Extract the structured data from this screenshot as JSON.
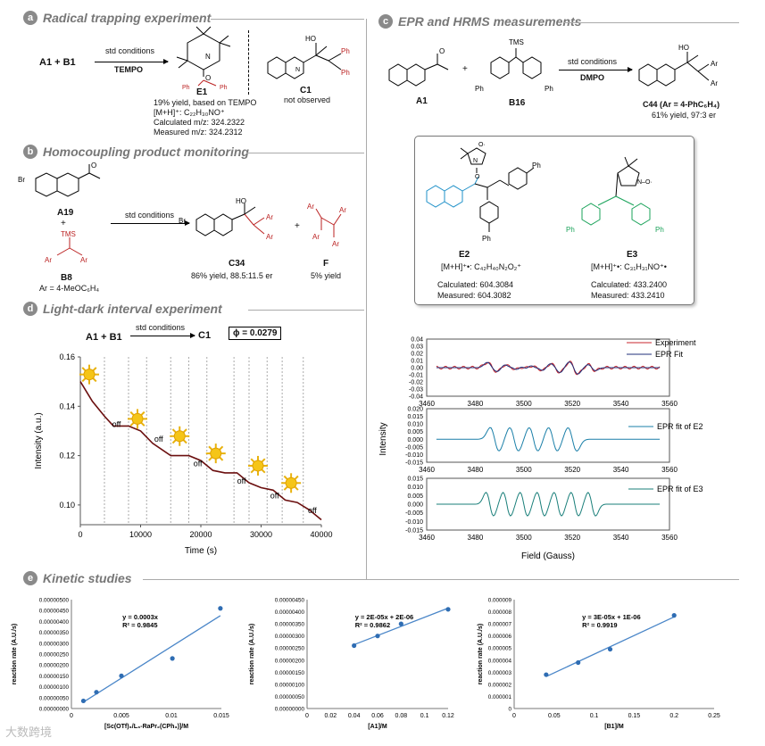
{
  "sections": {
    "a": {
      "letter": "a",
      "title": "Radical trapping experiment"
    },
    "b": {
      "letter": "b",
      "title": "Homocoupling product monitoring"
    },
    "c": {
      "letter": "c",
      "title": "EPR and HRMS measurements"
    },
    "d": {
      "letter": "d",
      "title": "Light-dark interval experiment"
    },
    "e": {
      "letter": "e",
      "title": "Kinetic studies"
    }
  },
  "a": {
    "reactants": "A1  +  B1",
    "conditions": "std conditions",
    "reagent": "TEMPO",
    "e1_label": "E1",
    "e1_yield": "19% yield, based on TEMPO",
    "e1_ion": "[M+H]⁺: C₂₂H₃₀NO⁺",
    "e1_calc": "Calculated m/z: 324.2322",
    "e1_meas": "Measured  m/z: 324.2312",
    "c1_label": "C1",
    "c1_note": "not observed"
  },
  "b": {
    "a19": "A19",
    "plus": "+",
    "b8": "B8",
    "b8_ar": "Ar = 4-MeOC₆H₄",
    "conditions": "std conditions",
    "c34": "C34",
    "c34_yield": "86% yield, 88.5:11.5 er",
    "f_label": "F",
    "f_yield": "5% yield"
  },
  "c": {
    "a1": "A1",
    "b16": "B16",
    "conditions": "std conditions",
    "reagent": "DMPO",
    "c44": "C44 (Ar = 4-PhC₆H₄)",
    "c44_yield": "61% yield, 97:3 er",
    "e2": "E2",
    "e2_ion": "[M+H]⁺•: C₄₂H₄₀N₂O₂⁺",
    "e2_calc": "Calculated: 604.3084",
    "e2_meas": "Measured: 604.3082",
    "e3": "E3",
    "e3_ion": "[M+H]⁺•: C₃₁H₃₁NO⁺•",
    "e3_calc": "Calculated: 433.2400",
    "e3_meas": "Measured:  433.2410"
  },
  "epr": {
    "legend_exp": "Experiment",
    "legend_fit": "EPR Fit",
    "legend_e2": "EPR fit of E2",
    "legend_e3": "EPR fit of E3",
    "ylabel": "Intensity",
    "xlabel": "Field (Gauss)",
    "xticks": [
      "3460",
      "3480",
      "3500",
      "3520",
      "3540",
      "3560"
    ],
    "p1_yticks": [
      "0.04",
      "0.03",
      "0.02",
      "0.01",
      "0.00",
      "-0.01",
      "-0.02",
      "-0.03",
      "-0.04"
    ],
    "p2_yticks": [
      "0.020",
      "0.015",
      "0.010",
      "0.005",
      "0.000",
      "-0.005",
      "-0.010",
      "-0.015"
    ],
    "p3_yticks": [
      "0.015",
      "0.010",
      "0.005",
      "0.000",
      "-0.005",
      "-0.010",
      "-0.015"
    ],
    "colors": {
      "experiment": "#c8272d",
      "fit": "#1f2f7a",
      "e2": "#1a7fa8",
      "e3": "#1a7f7a"
    }
  },
  "d": {
    "reaction": "A1  +  B1",
    "conditions": "std conditions",
    "product": "C1",
    "phi": "ϕ = 0.0279",
    "ylabel": "Intensity (a.u.)",
    "xlabel": "Time (s)",
    "xticks": [
      "0",
      "10000",
      "20000",
      "30000",
      "40000"
    ],
    "yticks": [
      "0.16",
      "0.14",
      "0.12",
      "0.10"
    ],
    "off_label": "off"
  },
  "chart_data": [
    {
      "type": "line",
      "title": "",
      "xlabel": "Time (s)",
      "ylabel": "Intensity (a.u.)",
      "xlim": [
        0,
        40000
      ],
      "ylim": [
        0.092,
        0.16
      ],
      "series": [
        {
          "x": [
            0,
            2000,
            4000,
            5500,
            8000,
            10000,
            12000,
            15000,
            18000,
            20000,
            22000,
            24000,
            26000,
            28000,
            30000,
            32000,
            34000,
            36000,
            38000,
            40000
          ],
          "y": [
            0.15,
            0.142,
            0.136,
            0.132,
            0.132,
            0.13,
            0.125,
            0.12,
            0.12,
            0.118,
            0.114,
            0.113,
            0.113,
            0.109,
            0.107,
            0.106,
            0.102,
            0.101,
            0.098,
            0.094
          ]
        }
      ],
      "light_intervals": [
        [
          0,
          4000
        ],
        [
          8000,
          11000
        ],
        [
          15000,
          18000
        ],
        [
          21000,
          25500
        ],
        [
          28000,
          31000
        ],
        [
          33500,
          37000
        ]
      ]
    },
    {
      "type": "scatter",
      "xlabel": "[Sc(OTf)₃/L₃-RaPr₂(CPh₃)]/M",
      "ylabel": "reaction rate (A.U./s)",
      "xlim": [
        0,
        0.015
      ],
      "ylim": [
        0,
        5e-06
      ],
      "yticks": [
        "0.00000500",
        "0.00000450",
        "0.00000400",
        "0.00000350",
        "0.00000300",
        "0.00000250",
        "0.00000200",
        "0.00000150",
        "0.00000100",
        "0.00000050",
        "0.00000000"
      ],
      "xticks": [
        "0",
        "0.005",
        "0.01",
        "0.015"
      ],
      "x": [
        0.0012,
        0.0025,
        0.005,
        0.0101,
        0.0149
      ],
      "y": [
        3.5e-07,
        7.5e-07,
        1.5e-06,
        2.3e-06,
        4.6e-06
      ],
      "fit_eq": "y = 0.0003x",
      "r2": "R² = 0.9845"
    },
    {
      "type": "scatter",
      "xlabel": "[A1]/M",
      "ylabel": "reaction rate (A.U./s)",
      "xlim": [
        0,
        0.12
      ],
      "ylim": [
        0,
        4.5e-06
      ],
      "yticks": [
        "0.00000450",
        "0.00000400",
        "0.00000350",
        "0.00000300",
        "0.00000250",
        "0.00000200",
        "0.00000150",
        "0.00000100",
        "0.00000050",
        "0.00000000"
      ],
      "xticks": [
        "0",
        "0.02",
        "0.04",
        "0.06",
        "0.08",
        "0.1",
        "0.12"
      ],
      "x": [
        0.04,
        0.06,
        0.08,
        0.12
      ],
      "y": [
        2.6e-06,
        3e-06,
        3.5e-06,
        4.1e-06
      ],
      "fit_eq": "y = 2E-05x + 2E-06",
      "r2": "R² = 0.9862"
    },
    {
      "type": "scatter",
      "xlabel": "[B1]/M",
      "ylabel": "reaction rate (A.U./s)",
      "xlim": [
        0,
        0.25
      ],
      "ylim": [
        0,
        9e-06
      ],
      "yticks": [
        "0.000009",
        "0.000008",
        "0.000007",
        "0.000006",
        "0.000005",
        "0.000004",
        "0.000003",
        "0.000002",
        "0.000001",
        "0"
      ],
      "xticks": [
        "0",
        "0.05",
        "0.1",
        "0.15",
        "0.2",
        "0.25"
      ],
      "x": [
        0.04,
        0.08,
        0.12,
        0.2
      ],
      "y": [
        2.8e-06,
        3.8e-06,
        4.9e-06,
        7.7e-06
      ],
      "fit_eq": "y = 3E-05x + 1E-06",
      "r2": "R² = 0.9919"
    }
  ],
  "watermark": "大数跨境"
}
